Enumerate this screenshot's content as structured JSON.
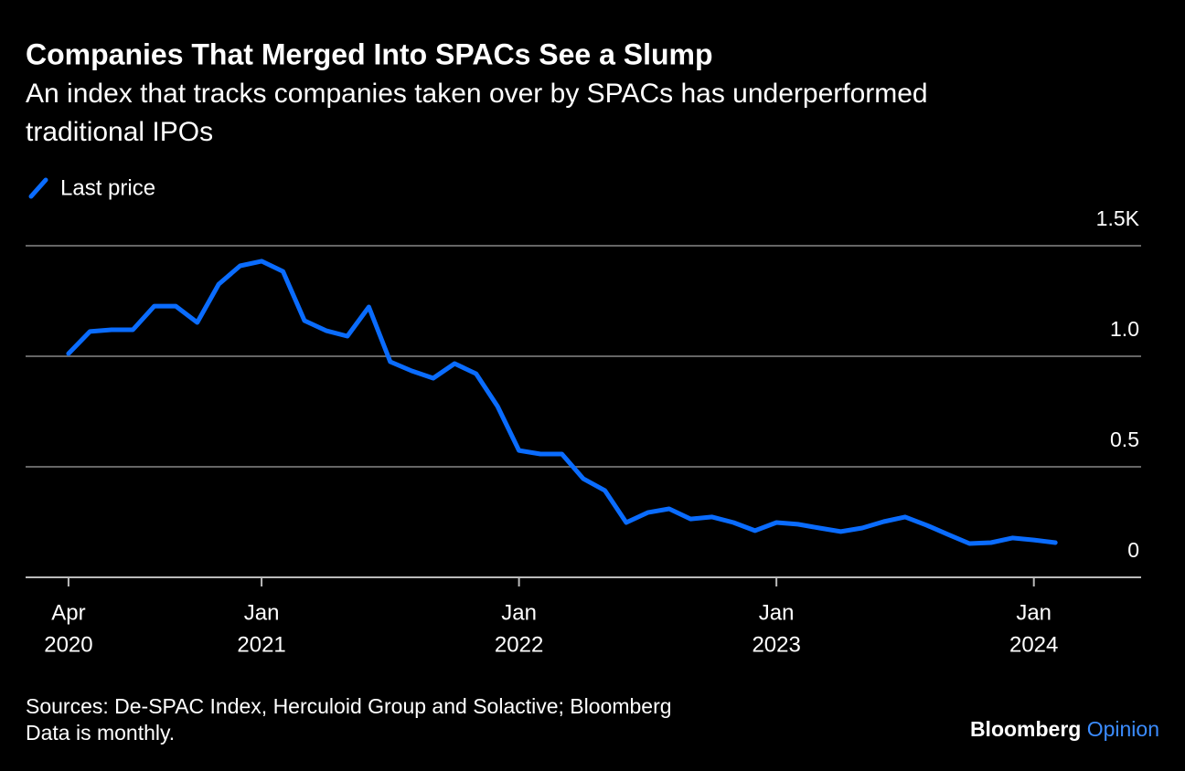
{
  "chart_data": {
    "type": "line",
    "title": "Companies That Merged Into SPACs See a Slump",
    "subtitle": [
      "An index that tracks companies taken over by SPACs has underperformed",
      "traditional IPOs"
    ],
    "x": [
      "2020-04",
      "2020-05",
      "2020-06",
      "2020-07",
      "2020-08",
      "2020-09",
      "2020-10",
      "2020-11",
      "2020-12",
      "2021-01",
      "2021-02",
      "2021-03",
      "2021-04",
      "2021-05",
      "2021-06",
      "2021-07",
      "2021-08",
      "2021-09",
      "2021-10",
      "2021-11",
      "2021-12",
      "2022-01",
      "2022-02",
      "2022-03",
      "2022-04",
      "2022-05",
      "2022-06",
      "2022-07",
      "2022-08",
      "2022-09",
      "2022-10",
      "2022-11",
      "2022-12",
      "2023-01",
      "2023-02",
      "2023-03",
      "2023-04",
      "2023-05",
      "2023-06",
      "2023-07",
      "2023-08",
      "2023-09",
      "2023-10",
      "2023-11",
      "2023-12",
      "2024-01",
      "2024-02"
    ],
    "series": [
      {
        "name": "Last price",
        "color": "#0a6cff",
        "values": [
          1012,
          1112,
          1120,
          1120,
          1227,
          1227,
          1153,
          1326,
          1409,
          1430,
          1384,
          1161,
          1116,
          1091,
          1223,
          975,
          934,
          901,
          967,
          921,
          773,
          574,
          558,
          558,
          446,
          393,
          248,
          293,
          310,
          264,
          273,
          248,
          211,
          248,
          240,
          223,
          207,
          223,
          252,
          273,
          236,
          194,
          153,
          157,
          178,
          169,
          157
        ]
      }
    ],
    "xlim": [
      "2020-02",
      "2024-06"
    ],
    "xticks": [
      {
        "value": "2020-04",
        "label": [
          "Apr",
          "2020"
        ]
      },
      {
        "value": "2021-01",
        "label": [
          "Jan",
          "2021"
        ]
      },
      {
        "value": "2022-01",
        "label": [
          "Jan",
          "2022"
        ]
      },
      {
        "value": "2023-01",
        "label": [
          "Jan",
          "2023"
        ]
      },
      {
        "value": "2024-01",
        "label": [
          "Jan",
          "2024"
        ]
      }
    ],
    "ylim": [
      0,
      1500
    ],
    "yticks": [
      0,
      {
        "value": 500,
        "label": "0.5"
      },
      {
        "value": 1000,
        "label": "1.0"
      },
      {
        "value": 1500,
        "label": "1.5K"
      }
    ],
    "grid": true,
    "legend": "top-left",
    "source": "Sources: De-SPAC Index, Herculoid Group and Solactive; Bloomberg",
    "note": "Data is monthly.",
    "brand": [
      "Bloomberg",
      "Opinion"
    ]
  }
}
